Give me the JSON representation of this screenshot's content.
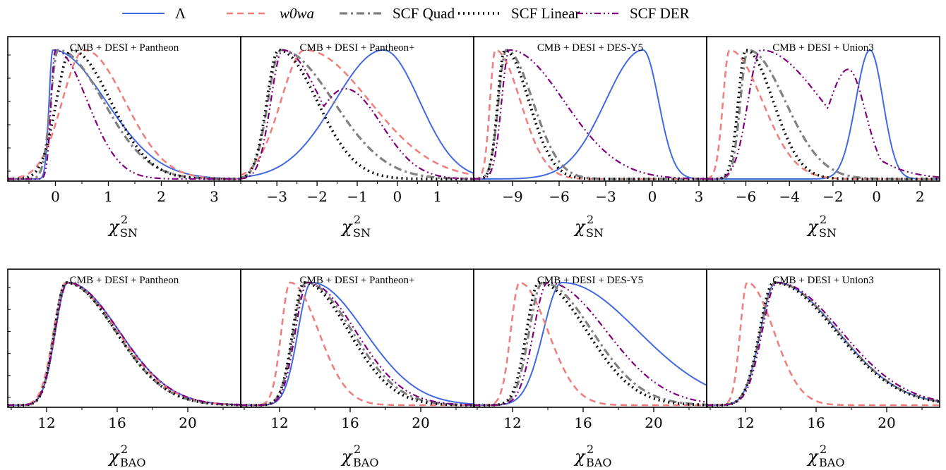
{
  "chart_data": {
    "type": "line",
    "legend": {
      "placement": "top-center",
      "entries": [
        {
          "label": "Λ",
          "color": "#4169e1",
          "dash": "solid",
          "italic": false
        },
        {
          "label": "w0wa",
          "color": "#f08080",
          "dash": "dashed",
          "italic": true
        },
        {
          "label": "SCF Quad",
          "color": "#808080",
          "dash": "dashdot",
          "italic": false
        },
        {
          "label": "SCF Linear",
          "color": "#000000",
          "dash": "dotted",
          "italic": false
        },
        {
          "label": "SCF DER",
          "color": "#800080",
          "dash": "dashdot-thin",
          "italic": false
        }
      ]
    },
    "xlabels": {
      "sn": {
        "main": "χ",
        "sup": "2",
        "sub": "SN"
      },
      "bao": {
        "main": "χ",
        "sup": "2",
        "sub": "BAO"
      }
    },
    "rows": [
      {
        "key": "sn",
        "panels": [
          {
            "title": "CMB + DESI + Pantheon",
            "xlim": [
              -0.9,
              3.5
            ],
            "xticks": [
              0,
              1,
              2,
              3
            ],
            "curves": [
              [
                -0.05,
                0.07,
                1.0
              ],
              [
                0.55,
                0.42,
                0.76
              ],
              [
                0.05,
                0.14,
                0.85
              ],
              [
                0.3,
                0.28,
                0.74
              ],
              [
                0.0,
                0.08,
                0.6
              ]
            ]
          },
          {
            "title": "CMB + DESI + Pantheon+",
            "xlim": [
              -3.9,
              1.9
            ],
            "xticks": [
              -3,
              -2,
              -1,
              0,
              1
            ],
            "curves": [
              [
                -0.35,
                1.2,
                0.9
              ],
              [
                -2.3,
                0.6,
                1.6
              ],
              [
                -2.9,
                0.32,
                1.3
              ],
              [
                -2.95,
                0.3,
                0.95
              ],
              [
                -2.85,
                0.3,
                0.95
              ]
            ]
          },
          {
            "title": "CMB + DESI + DES-Y5",
            "xlim": [
              -11.5,
              3.5
            ],
            "xticks": [
              -9,
              -6,
              -3,
              0,
              3
            ],
            "curves": [
              [
                -0.6,
                2.4,
                1.0
              ],
              [
                -10.1,
                0.35,
                1.6
              ],
              [
                -9.4,
                0.5,
                1.7
              ],
              [
                -9.5,
                0.45,
                1.55
              ],
              [
                -9.2,
                0.5,
                3.5
              ]
            ]
          },
          {
            "title": "CMB + DESI + Union3",
            "xlim": [
              -7.8,
              2.9
            ],
            "xticks": [
              -6,
              -4,
              -2,
              0,
              2
            ],
            "curves": [
              [
                -0.3,
                0.65,
                0.6
              ],
              [
                -6.75,
                0.3,
                1.5
              ],
              [
                -5.9,
                0.35,
                1.7
              ],
              [
                -6.0,
                0.35,
                1.25
              ],
              [
                -5.3,
                0.6,
                2.8
              ]
            ]
          }
        ]
      },
      {
        "key": "bao",
        "panels": [
          {
            "title": "CMB + DESI + Pantheon",
            "xlim": [
              9.8,
              23.0
            ],
            "xticks": [
              12,
              16,
              20
            ],
            "curves": [
              [
                13.2,
                0.7,
                2.9
              ],
              [
                13.1,
                0.7,
                2.9
              ],
              [
                13.1,
                0.65,
                2.8
              ],
              [
                13.1,
                0.65,
                2.8
              ],
              [
                13.2,
                0.7,
                2.9
              ]
            ]
          },
          {
            "title": "CMB + DESI + Pantheon+",
            "xlim": [
              9.8,
              23.0
            ],
            "xticks": [
              12,
              16,
              20
            ],
            "curves": [
              [
                13.8,
                0.75,
                3.0
              ],
              [
                12.6,
                0.5,
                1.6
              ],
              [
                13.5,
                0.7,
                2.6
              ],
              [
                13.4,
                0.65,
                2.5
              ],
              [
                13.6,
                0.7,
                2.7
              ]
            ]
          },
          {
            "title": "CMB + DESI + DES-Y5",
            "xlim": [
              9.8,
              23.0
            ],
            "xticks": [
              12,
              16,
              20
            ],
            "curves": [
              [
                14.8,
                1.05,
                4.3
              ],
              [
                12.4,
                0.5,
                1.6
              ],
              [
                13.7,
                0.75,
                2.8
              ],
              [
                13.5,
                0.7,
                2.7
              ],
              [
                14.0,
                0.8,
                3.3
              ]
            ]
          },
          {
            "title": "CMB + DESI + Union3",
            "xlim": [
              9.8,
              23.0
            ],
            "xticks": [
              12,
              16,
              20
            ],
            "curves": [
              [
                13.7,
                0.85,
                3.5
              ],
              [
                12.1,
                0.4,
                1.5
              ],
              [
                13.7,
                0.85,
                3.5
              ],
              [
                13.6,
                0.8,
                3.5
              ],
              [
                13.8,
                0.85,
                3.6
              ]
            ]
          }
        ]
      }
    ]
  }
}
